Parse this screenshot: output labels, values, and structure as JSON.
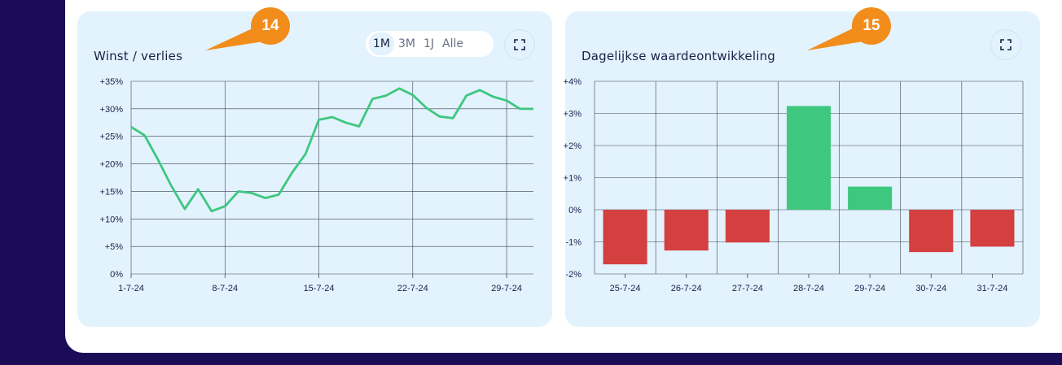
{
  "cards": {
    "left": {
      "title": "Winst / verlies",
      "badge": "14",
      "ranges": [
        "1M",
        "3M",
        "1J",
        "Alle"
      ],
      "active_range": "1M",
      "expand_icon": "expand-icon"
    },
    "right": {
      "title": "Dagelijkse waardeontwikkeling",
      "badge": "15",
      "expand_icon": "expand-icon"
    }
  },
  "colors": {
    "background": "#1b0c58",
    "card": "#e2f3fd",
    "badge": "#f28c1a",
    "line": "#3ec77f",
    "positive": "#3ec77f",
    "negative": "#d43f3f",
    "grid": "#3a3f55"
  },
  "chart_data": [
    {
      "type": "line",
      "ylim": [
        0,
        35
      ],
      "y_ticks": [
        "0%",
        "+5%",
        "+10%",
        "+15%",
        "+20%",
        "+25%",
        "+30%",
        "+35%"
      ],
      "x_ticks": [
        "1-7-24",
        "8-7-24",
        "15-7-24",
        "22-7-24",
        "29-7-24"
      ],
      "x": [
        "1-7-24",
        "2-7-24",
        "3-7-24",
        "4-7-24",
        "5-7-24",
        "6-7-24",
        "7-7-24",
        "8-7-24",
        "9-7-24",
        "10-7-24",
        "11-7-24",
        "12-7-24",
        "13-7-24",
        "14-7-24",
        "15-7-24",
        "16-7-24",
        "17-7-24",
        "18-7-24",
        "19-7-24",
        "20-7-24",
        "21-7-24",
        "22-7-24",
        "23-7-24",
        "24-7-24",
        "25-7-24",
        "26-7-24",
        "27-7-24",
        "28-7-24",
        "29-7-24",
        "30-7-24",
        "31-7-24"
      ],
      "values": [
        26.7,
        25.2,
        20.8,
        16.0,
        11.8,
        15.4,
        11.4,
        12.3,
        15.0,
        14.7,
        13.8,
        14.4,
        18.4,
        21.8,
        28.0,
        28.5,
        27.5,
        26.8,
        31.8,
        32.4,
        33.7,
        32.5,
        30.2,
        28.6,
        28.3,
        32.4,
        33.4,
        32.2,
        31.5,
        30.0,
        30.0
      ]
    },
    {
      "type": "bar",
      "ylim": [
        -2,
        4
      ],
      "y_ticks": [
        "-2%",
        "-1%",
        "0%",
        "+1%",
        "+2%",
        "+3%",
        "+4%"
      ],
      "categories": [
        "25-7-24",
        "26-7-24",
        "27-7-24",
        "28-7-24",
        "29-7-24",
        "30-7-24",
        "31-7-24"
      ],
      "values": [
        -1.7,
        -1.27,
        -1.02,
        3.23,
        0.72,
        -1.32,
        -1.15
      ]
    }
  ]
}
